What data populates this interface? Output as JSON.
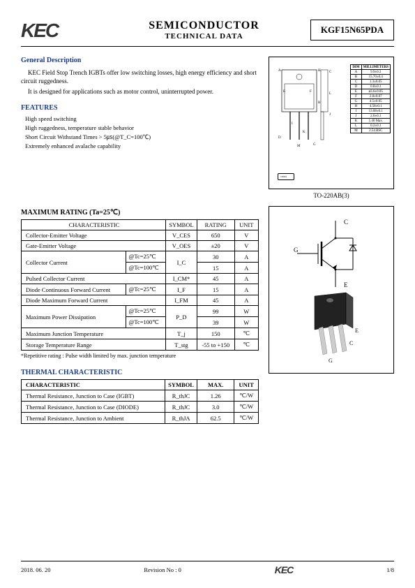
{
  "header": {
    "logo": "KEC",
    "logo_sub": "",
    "title_main": "SEMICONDUCTOR",
    "title_sub": "TECHNICAL DATA",
    "part_number": "KGF15N65PDA"
  },
  "general": {
    "heading": "General Description",
    "p1": "KEC Field Stop Trench IGBTs offer low switching losses, high energy efficiency and short circuit ruggedness.",
    "p2": "It is designed for applications such as motor control, uninterrupted power."
  },
  "features": {
    "heading": "FEATURES",
    "items": [
      "High speed switching",
      "High ruggedness, temperature stable behavior",
      "Short Circuit Withstand Times > 5㎲(@T_C=100℃)",
      "Extremely enhanced avalache capability"
    ]
  },
  "package_label": "TO-220AB(3)",
  "dim_rows": [
    [
      "DIM",
      "MILLIMETERS"
    ],
    [
      "A",
      "9.9±0.3"
    ],
    [
      "B",
      "15.70±0.4"
    ],
    [
      "C",
      "1.3±0.05"
    ],
    [
      "D",
      "0.8±0.1"
    ],
    [
      "E",
      "ø3.6±0.05"
    ],
    [
      "F",
      "2.8±0.07"
    ],
    [
      "G",
      "4.5±0.05"
    ],
    [
      "H",
      "4.58±0.1"
    ],
    [
      "I",
      "13.08±0.1"
    ],
    [
      "J",
      "2.6±0.1"
    ],
    [
      "K",
      "1.40 Max."
    ],
    [
      "L",
      "0.2±0.1"
    ],
    [
      "M",
      "2.54 BSC"
    ]
  ],
  "max": {
    "heading": "MAXIMUM RATING (Ta=25℃)",
    "head": [
      "CHARACTERISTIC",
      "SYMBOL",
      "RATING",
      "UNIT"
    ],
    "rows": [
      {
        "char": "Collector-Emitter Voltage",
        "cond": "",
        "sym": "V_CES",
        "rate": "650",
        "unit": "V",
        "rowspan": 1
      },
      {
        "char": "Gate-Emitter Voltage",
        "cond": "",
        "sym": "V_OES",
        "rate": "±20",
        "unit": "V",
        "rowspan": 1
      }
    ],
    "collector_current": {
      "char": "Collector Current",
      "c1": "@Tc=25℃",
      "r1": "30",
      "c2": "@Tc=100℃",
      "r2": "15",
      "sym": "I_C",
      "unit": "A"
    },
    "pulsed": {
      "char": "Pulsed Collector Current",
      "sym": "I_CM*",
      "rate": "45",
      "unit": "A"
    },
    "diode_cont": {
      "char": "Diode Continuous Forward Current",
      "cond": "@Tc=25℃",
      "sym": "I_F",
      "rate": "15",
      "unit": "A"
    },
    "diode_max": {
      "char": "Diode Maximum Forward Current",
      "sym": "I_FM",
      "rate": "45",
      "unit": "A"
    },
    "power": {
      "char": "Maximum Power Dissipation",
      "c1": "@Tc=25℃",
      "r1": "99",
      "c2": "@Tc=100℃",
      "r2": "39",
      "sym": "P_D",
      "unit": "W"
    },
    "tjmax": {
      "char": "Maximum Junction Temperature",
      "sym": "T_j",
      "rate": "150",
      "unit": "℃"
    },
    "tstg": {
      "char": "Storage Temperature Range",
      "sym": "T_stg",
      "rate": "-55 to +150",
      "unit": "℃"
    },
    "footnote": "*Repetitive rating : Pulse width limited by max. junction temperature"
  },
  "thermal": {
    "heading": "THERMAL CHARACTERISTIC",
    "head": [
      "CHARACTERISTIC",
      "SYMBOL",
      "MAX.",
      "UNIT"
    ],
    "rows": [
      {
        "char": "Thermal Resistance, Junction to Case (IGBT)",
        "sym": "R_thJC",
        "max": "1.26",
        "unit": "℃/W"
      },
      {
        "char": "Thermal Resistance, Junction to Case (DIODE)",
        "sym": "R_thJC",
        "max": "3.0",
        "unit": "℃/W"
      },
      {
        "char": "Thermal Resistance, Junction to Ambient",
        "sym": "R_thJA",
        "max": "62.5",
        "unit": "℃/W"
      }
    ]
  },
  "schematic_labels": {
    "c": "C",
    "g": "G",
    "e": "E"
  },
  "footer": {
    "date": "2018. 06. 20",
    "rev": "Revision No : 0",
    "page": "1/8"
  }
}
